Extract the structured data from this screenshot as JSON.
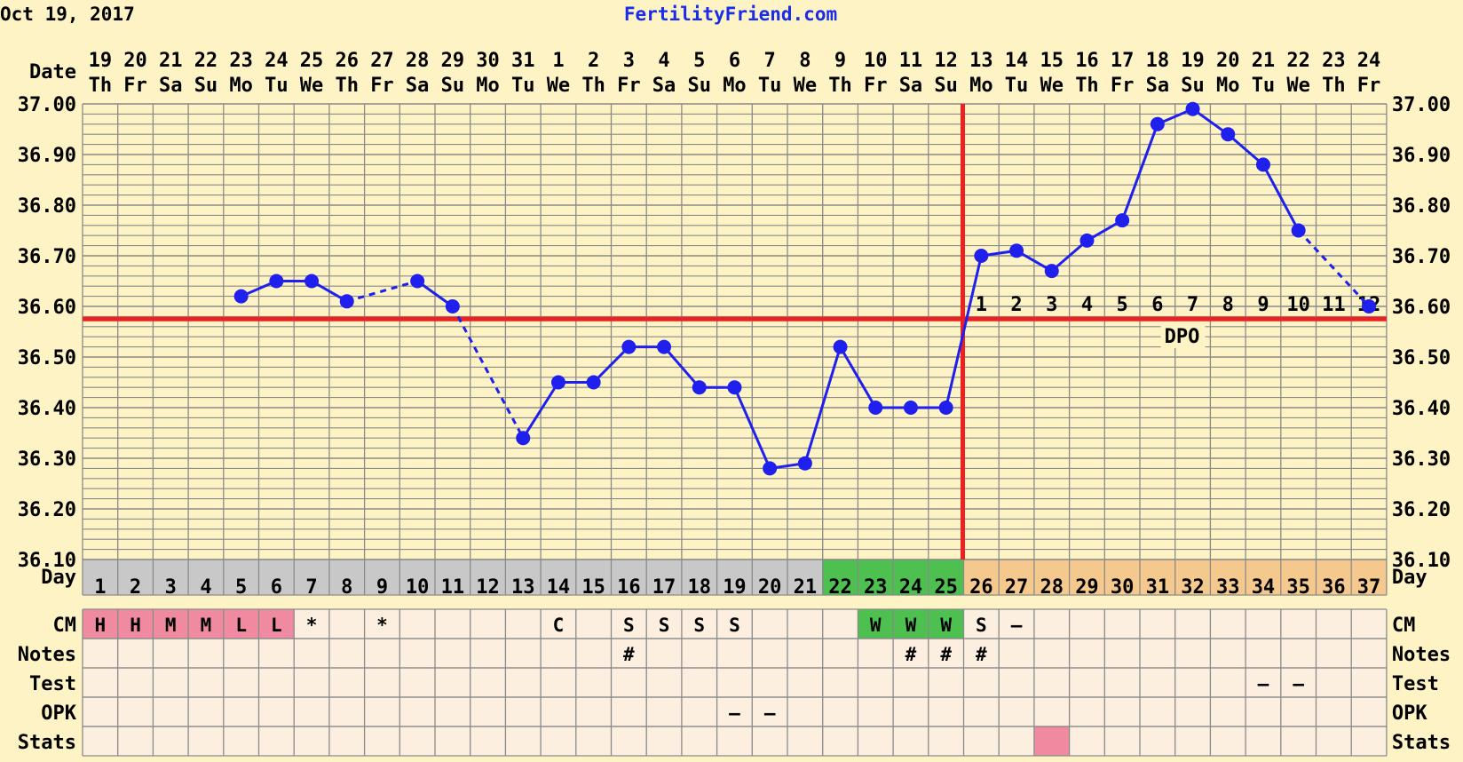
{
  "header": {
    "date": "Oct 19, 2017",
    "site": "FertilityFriend.com"
  },
  "colors": {
    "background": "#fdf3c4",
    "grid": "#8a8a8a",
    "temp_line": "#2020ee",
    "coverline": "#ee2020",
    "row_bg": "#fcefdf",
    "cm_pink": "#f08aa0",
    "fertile_green": "#4ec050",
    "day_gray": "#c8c8c8",
    "day_orange": "#f5c98e",
    "stats_pink": "#f08aa0"
  },
  "chart_data": {
    "type": "line",
    "date_numbers": [
      "19",
      "20",
      "21",
      "22",
      "23",
      "24",
      "25",
      "26",
      "27",
      "28",
      "29",
      "30",
      "31",
      "1",
      "2",
      "3",
      "4",
      "5",
      "6",
      "7",
      "8",
      "9",
      "10",
      "11",
      "12",
      "13",
      "14",
      "15",
      "16",
      "17",
      "18",
      "19",
      "20",
      "21",
      "22",
      "23",
      "24"
    ],
    "weekdays": [
      "Th",
      "Fr",
      "Sa",
      "Su",
      "Mo",
      "Tu",
      "We",
      "Th",
      "Fr",
      "Sa",
      "Su",
      "Mo",
      "Tu",
      "We",
      "Th",
      "Fr",
      "Sa",
      "Su",
      "Mo",
      "Tu",
      "We",
      "Th",
      "Fr",
      "Sa",
      "Su",
      "Mo",
      "Tu",
      "We",
      "Th",
      "Fr",
      "Sa",
      "Su",
      "Mo",
      "Tu",
      "We",
      "Th",
      "Fr"
    ],
    "cycle_days": [
      "1",
      "2",
      "3",
      "4",
      "5",
      "6",
      "7",
      "8",
      "9",
      "10",
      "11",
      "12",
      "13",
      "14",
      "15",
      "16",
      "17",
      "18",
      "19",
      "20",
      "21",
      "22",
      "23",
      "24",
      "25",
      "26",
      "27",
      "28",
      "29",
      "30",
      "31",
      "32",
      "33",
      "34",
      "35",
      "36",
      "37"
    ],
    "temperatures": [
      null,
      null,
      null,
      null,
      36.62,
      36.65,
      36.65,
      36.61,
      null,
      36.65,
      36.6,
      null,
      36.34,
      36.45,
      36.45,
      36.52,
      36.52,
      36.44,
      36.44,
      36.28,
      36.29,
      36.52,
      36.4,
      36.4,
      36.4,
      36.7,
      36.71,
      36.67,
      36.73,
      36.77,
      36.96,
      36.99,
      36.94,
      36.88,
      36.75,
      null,
      36.6
    ],
    "ylim": [
      36.1,
      37.0
    ],
    "y_ticks": [
      "36.10",
      "36.20",
      "36.30",
      "36.40",
      "36.50",
      "36.60",
      "36.70",
      "36.80",
      "36.90",
      "37.00"
    ],
    "coverline": 36.575,
    "ovulation_day_index": 24,
    "dpo_numbers": [
      "1",
      "2",
      "3",
      "4",
      "5",
      "6",
      "7",
      "8",
      "9",
      "10",
      "11",
      "12"
    ],
    "dpo_label": "DPO",
    "row_labels": {
      "date": "Date",
      "day": "Day",
      "cm": "CM",
      "notes": "Notes",
      "test": "Test",
      "opk": "OPK",
      "stats": "Stats"
    },
    "cm": [
      "H",
      "H",
      "M",
      "M",
      "L",
      "L",
      "*",
      "",
      "*",
      "",
      "",
      "",
      "",
      "C",
      "",
      "S",
      "S",
      "S",
      "S",
      "",
      "",
      "",
      "W",
      "W",
      "W",
      "S",
      "–",
      "",
      "",
      "",
      "",
      "",
      "",
      "",
      "",
      "",
      ""
    ],
    "cm_pink_days": [
      0,
      1,
      2,
      3,
      4,
      5
    ],
    "fertile_days": [
      21,
      22,
      23,
      24
    ],
    "notes": [
      "",
      "",
      "",
      "",
      "",
      "",
      "",
      "",
      "",
      "",
      "",
      "",
      "",
      "",
      "",
      "#",
      "",
      "",
      "",
      "",
      "",
      "",
      "",
      "#",
      "#",
      "#",
      "",
      "",
      "",
      "",
      "",
      "",
      "",
      "",
      "",
      "",
      ""
    ],
    "test": [
      "",
      "",
      "",
      "",
      "",
      "",
      "",
      "",
      "",
      "",
      "",
      "",
      "",
      "",
      "",
      "",
      "",
      "",
      "",
      "",
      "",
      "",
      "",
      "",
      "",
      "",
      "",
      "",
      "",
      "",
      "",
      "",
      "",
      "–",
      "–",
      "",
      ""
    ],
    "opk": [
      "",
      "",
      "",
      "",
      "",
      "",
      "",
      "",
      "",
      "",
      "",
      "",
      "",
      "",
      "",
      "",
      "",
      "",
      "–",
      "–",
      "",
      "",
      "",
      "",
      "",
      "",
      "",
      "",
      "",
      "",
      "",
      "",
      "",
      "",
      "",
      "",
      ""
    ],
    "stats_pink_days": [
      27
    ]
  }
}
